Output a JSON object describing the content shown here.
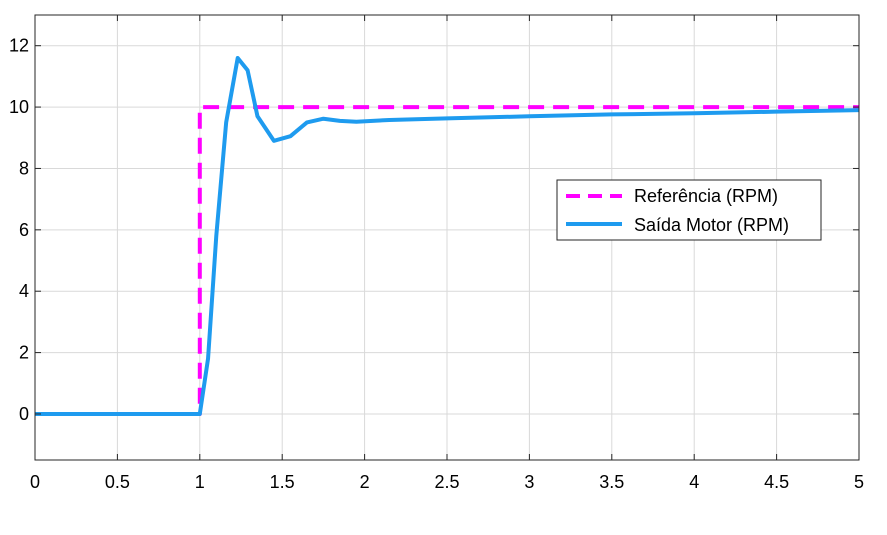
{
  "chart_data": {
    "type": "line",
    "title": "",
    "xlabel": "",
    "ylabel": "",
    "xlim": [
      0,
      5
    ],
    "ylim": [
      -1.5,
      13.0
    ],
    "x_ticks": [
      0,
      0.5,
      1,
      1.5,
      2,
      2.5,
      3,
      3.5,
      4,
      4.5,
      5
    ],
    "x_tick_labels": [
      "0",
      "0.5",
      "1",
      "1.5",
      "2",
      "2.5",
      "3",
      "3.5",
      "4",
      "4.5",
      "5"
    ],
    "y_ticks": [
      0,
      2,
      4,
      6,
      8,
      10,
      12
    ],
    "y_tick_labels": [
      "0",
      "2",
      "4",
      "6",
      "8",
      "10",
      "12"
    ],
    "grid": true,
    "legend_position": "right",
    "series": [
      {
        "name": "Referência (RPM)",
        "color": "#ff00ff",
        "style": "dashed",
        "x": [
          0,
          1,
          1,
          5
        ],
        "y": [
          0,
          0,
          10,
          10
        ]
      },
      {
        "name": "Saída Motor (RPM)",
        "color": "#1e9bef",
        "style": "solid",
        "x": [
          0,
          1.0,
          1.05,
          1.1,
          1.16,
          1.23,
          1.29,
          1.35,
          1.45,
          1.55,
          1.65,
          1.75,
          1.85,
          1.95,
          2.15,
          2.5,
          3.0,
          3.5,
          4.0,
          4.5,
          5.0
        ],
        "y": [
          0,
          0,
          1.8,
          5.8,
          9.5,
          11.6,
          11.2,
          9.7,
          8.9,
          9.05,
          9.5,
          9.62,
          9.55,
          9.52,
          9.58,
          9.63,
          9.7,
          9.76,
          9.8,
          9.85,
          9.9
        ]
      }
    ]
  }
}
